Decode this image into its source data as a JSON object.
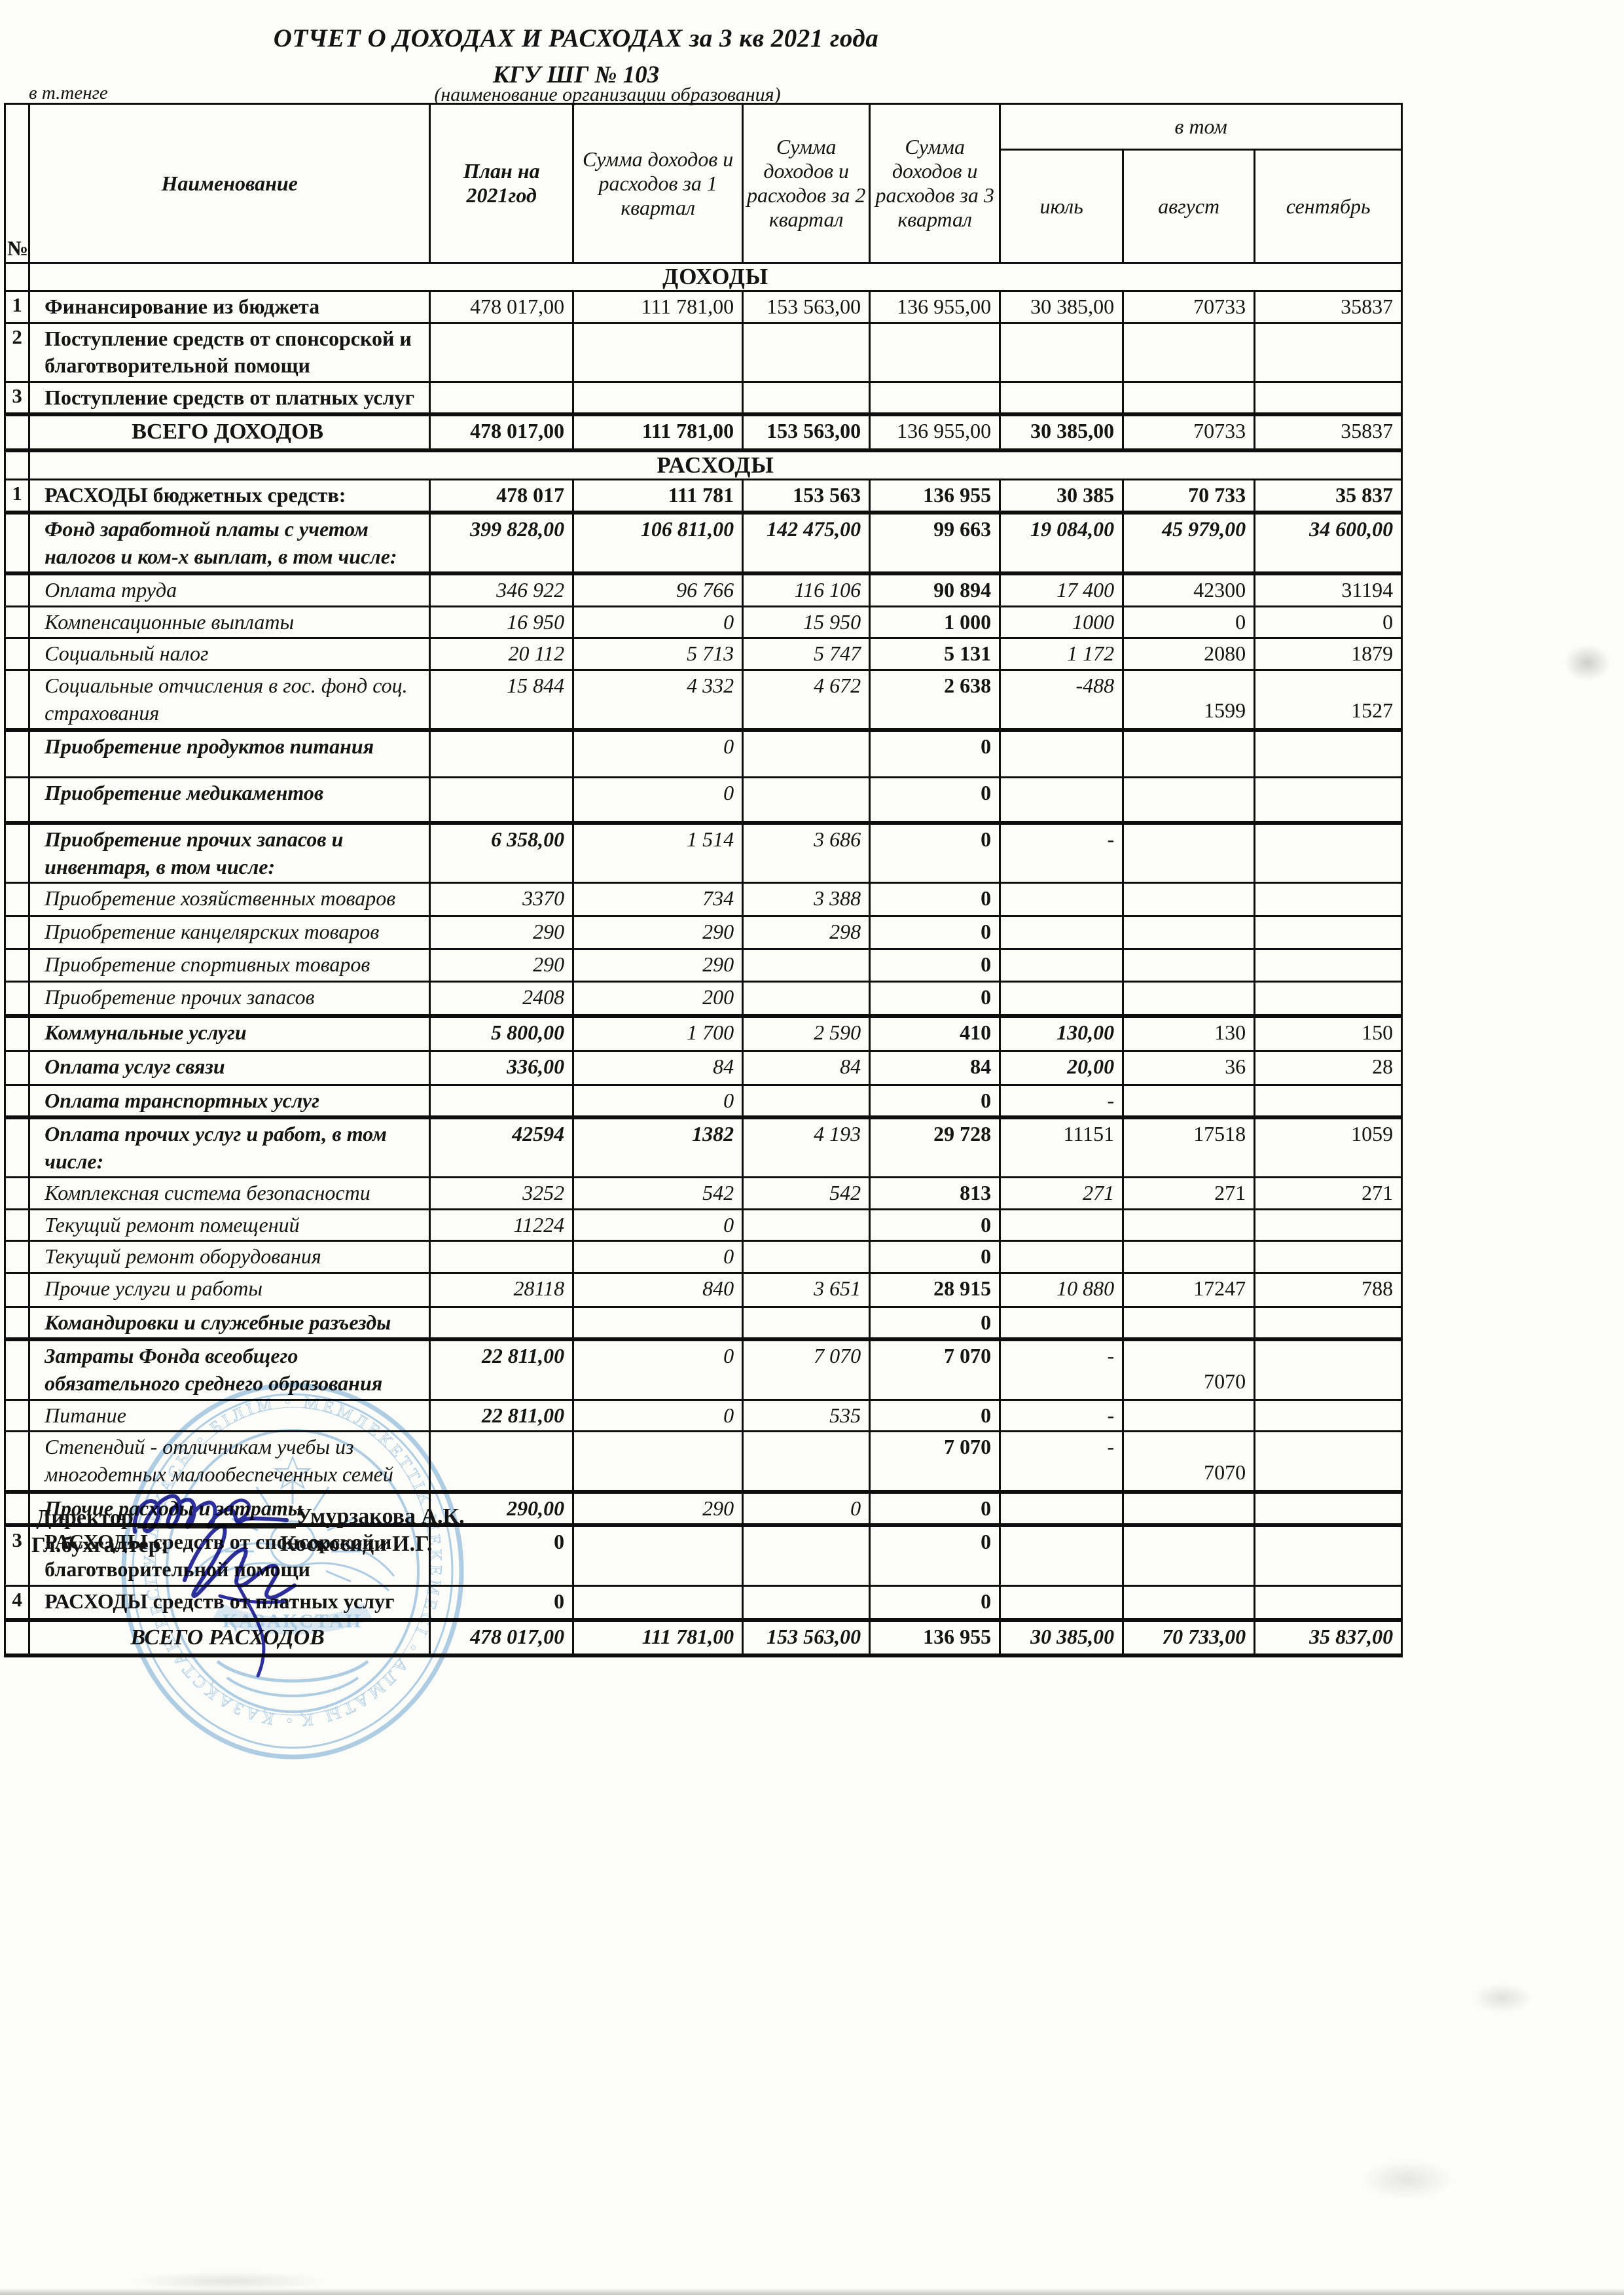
{
  "page": {
    "title_line1": "ОТЧЕТ О ДОХОДАХ И РАСХОДАХ за 3 кв   2021 года",
    "title_line2": "КГУ ШГ  №  103",
    "subtitle": "(наименование организации образования)",
    "currency_note": "в т.тенге"
  },
  "table": {
    "headers": {
      "num": "№",
      "name": "Наименование",
      "plan": "План на 2021год",
      "q1": "Сумма доходов и расходов за  1 квартал",
      "q2": "Сумма доходов и расходов за  2 квартал",
      "q3": "Сумма доходов и расходов за  3 квартал",
      "group": "в том",
      "months": [
        "июль",
        "август",
        "сентябрь"
      ]
    },
    "rows": [
      {
        "t": "section",
        "label": "ДОХОДЫ",
        "h": 35
      },
      {
        "t": "data",
        "num": "1",
        "name": "Финансирование из бюджета",
        "ns": "b",
        "h": 43,
        "v": [
          "478 017,00",
          "111 781,00",
          "153 563,00",
          "136 955,00",
          "30 385,00",
          "70733",
          "35837"
        ],
        "vs": [
          "",
          "",
          "",
          "",
          "",
          "",
          ""
        ]
      },
      {
        "t": "data",
        "num": "2",
        "name": "Поступление средств от спонсорской и благотворительной помощи",
        "ns": "b",
        "h": 87,
        "v": [
          "",
          "",
          "",
          "",
          "",
          "",
          ""
        ],
        "vs": [
          "",
          "",
          "",
          "",
          "",
          "",
          ""
        ]
      },
      {
        "t": "data",
        "num": "3",
        "name": "Поступление средств от платных услуг",
        "ns": "b",
        "h": 47,
        "hb": true,
        "v": [
          "",
          "",
          "",
          "",
          "",
          "",
          ""
        ],
        "vs": [
          "",
          "",
          "",
          "",
          "",
          "",
          ""
        ]
      },
      {
        "t": "total",
        "name": "ВСЕГО ДОХОДОВ",
        "ns": "b",
        "h": 46,
        "hb": true,
        "v": [
          "478 017,00",
          "111 781,00",
          "153 563,00",
          "136 955,00",
          "30 385,00",
          "70733",
          "35837"
        ],
        "vs": [
          "b",
          "b",
          "b",
          "",
          "b",
          "",
          ""
        ]
      },
      {
        "t": "section",
        "label": "РАСХОДЫ",
        "h": 34
      },
      {
        "t": "data",
        "num": "1",
        "name": "РАСХОДЫ бюджетных средств:",
        "ns": "b",
        "h": 51,
        "hb": true,
        "v": [
          "478 017",
          "111 781",
          "153 563",
          "136 955",
          "30 385",
          "70 733",
          "35 837"
        ],
        "vs": [
          "b",
          "b",
          "b",
          "b",
          "b",
          "b",
          "b"
        ]
      },
      {
        "t": "data",
        "num": "",
        "name": "Фонд заработной платы с учетом налогов и ком-х выплат, в том числе:",
        "ns": "bi",
        "h": 87,
        "hb": true,
        "v": [
          "399 828,00",
          "106 811,00",
          "142 475,00",
          "99 663",
          "19 084,00",
          "45 979,00",
          "34 600,00"
        ],
        "vs": [
          "bi",
          "bi",
          "bi",
          "b",
          "bi",
          "bi",
          "bi"
        ]
      },
      {
        "t": "data",
        "num": "",
        "name": "Оплата труда",
        "ns": "i",
        "h": 45,
        "v": [
          "346 922",
          "96 766",
          "116 106",
          "90 894",
          "17 400",
          "42300",
          "31194"
        ],
        "vs": [
          "i",
          "i",
          "i",
          "b",
          "i",
          "",
          ""
        ]
      },
      {
        "t": "data",
        "num": "",
        "name": "Компенсационные выплаты",
        "ns": "i",
        "h": 43,
        "v": [
          "16 950",
          "0",
          "15 950",
          "1 000",
          "1000",
          "0",
          "0"
        ],
        "vs": [
          "i",
          "i",
          "i",
          "b",
          "i",
          "",
          ""
        ]
      },
      {
        "t": "data",
        "num": "",
        "name": "Социальный налог",
        "ns": "i",
        "h": 44,
        "v": [
          "20 112",
          "5 713",
          "5 747",
          "5 131",
          "1 172",
          "2080",
          "1879"
        ],
        "vs": [
          "i",
          "i",
          "i",
          "b",
          "i",
          "",
          ""
        ]
      },
      {
        "t": "data",
        "num": "",
        "name": "Социальные отчисления в гос. фонд соц. страхования",
        "ns": "i",
        "h": 66,
        "hb": true,
        "v": [
          "15 844",
          "4 332",
          "4 672",
          "2 638",
          "-488",
          "1599",
          "1527"
        ],
        "vs": [
          "i",
          "i",
          "i",
          "b",
          "i",
          "d",
          "d"
        ]
      },
      {
        "t": "data",
        "num": "",
        "name": "Приобретение продуктов питания",
        "ns": "bi",
        "h": 72,
        "v": [
          "",
          "0",
          "",
          "0",
          "",
          "",
          ""
        ],
        "vs": [
          "",
          "i",
          "",
          "b",
          "",
          "",
          ""
        ]
      },
      {
        "t": "data",
        "num": "",
        "name": "Приобретение медикаментов",
        "ns": "bi",
        "h": 70,
        "hb": true,
        "v": [
          "",
          "0",
          "",
          "0",
          "",
          "",
          ""
        ],
        "vs": [
          "",
          "i",
          "",
          "b",
          "",
          "",
          ""
        ]
      },
      {
        "t": "data",
        "num": "",
        "name": "Приобретение прочих запасов и инвентаря, в том числе:",
        "ns": "bi",
        "h": 77,
        "v": [
          "6 358,00",
          "1 514",
          "3 686",
          "0",
          "-",
          "",
          ""
        ],
        "vs": [
          "bi",
          "i",
          "i",
          "b",
          "",
          "",
          ""
        ]
      },
      {
        "t": "data",
        "num": "",
        "name": "Приобретение хозяйственных товаров",
        "ns": "i",
        "h": 51,
        "v": [
          "3370",
          "734",
          "3 388",
          "0",
          "",
          "",
          ""
        ],
        "vs": [
          "i",
          "i",
          "i",
          "b",
          "",
          "",
          ""
        ]
      },
      {
        "t": "data",
        "num": "",
        "name": "Приобретение канцелярских товаров",
        "ns": "i",
        "h": 50,
        "v": [
          "290",
          "290",
          "298",
          "0",
          "",
          "",
          ""
        ],
        "vs": [
          "i",
          "i",
          "i",
          "b",
          "",
          "",
          ""
        ]
      },
      {
        "t": "data",
        "num": "",
        "name": "Приобретение спортивных товаров",
        "ns": "i",
        "h": 50,
        "v": [
          "290",
          "290",
          "",
          "0",
          "",
          "",
          ""
        ],
        "vs": [
          "i",
          "i",
          "",
          "b",
          "",
          "",
          ""
        ]
      },
      {
        "t": "data",
        "num": "",
        "name": "Приобретение прочих запасов",
        "ns": "i",
        "h": 52,
        "hb": true,
        "v": [
          "2408",
          "200",
          "",
          "0",
          "",
          "",
          ""
        ],
        "vs": [
          "i",
          "i",
          "",
          "b",
          "",
          "",
          ""
        ]
      },
      {
        "t": "data",
        "num": "",
        "name": "Коммунальные услуги",
        "ns": "bi",
        "h": 50,
        "v": [
          "5 800,00",
          "1 700",
          "2 590",
          "410",
          "130,00",
          "130",
          "150"
        ],
        "vs": [
          "bi",
          "i",
          "i",
          "b",
          "bi",
          "d",
          "d"
        ]
      },
      {
        "t": "data",
        "num": "",
        "name": "Оплата услуг связи",
        "ns": "bi",
        "h": 47,
        "v": [
          "336,00",
          "84",
          "84",
          "84",
          "20,00",
          "36",
          "28"
        ],
        "vs": [
          "bi",
          "i",
          "i",
          "b",
          "bi",
          "d",
          "d"
        ]
      },
      {
        "t": "data",
        "num": "",
        "name": "Оплата транспортных услуг",
        "ns": "bi",
        "h": 45,
        "hb": true,
        "v": [
          "",
          "0",
          "",
          "0",
          "-",
          "",
          ""
        ],
        "vs": [
          "",
          "i",
          "",
          "b",
          "",
          "",
          ""
        ]
      },
      {
        "t": "data",
        "num": "",
        "name": "Оплата прочих услуг и работ, в том числе:",
        "ns": "bi",
        "h": 40,
        "v": [
          "42594",
          "1382",
          "4 193",
          "29 728",
          "11151",
          "17518",
          "1059"
        ],
        "vs": [
          "bi",
          "bi",
          "i",
          "b",
          "",
          "",
          ""
        ]
      },
      {
        "t": "data",
        "num": "",
        "name": "Комплексная система безопасности",
        "ns": "i",
        "h": 45,
        "v": [
          "3252",
          "542",
          "542",
          "813",
          "271",
          "271",
          "271"
        ],
        "vs": [
          "i",
          "i",
          "i",
          "b",
          "i",
          "",
          ""
        ]
      },
      {
        "t": "data",
        "num": "",
        "name": "Текущий ремонт помещений",
        "ns": "i",
        "h": 46,
        "v": [
          "11224",
          "0",
          "",
          "0",
          "",
          "",
          ""
        ],
        "vs": [
          "i",
          "i",
          "",
          "b",
          "",
          "",
          ""
        ]
      },
      {
        "t": "data",
        "num": "",
        "name": "Текущий ремонт оборудования",
        "ns": "i",
        "h": 47,
        "v": [
          "",
          "0",
          "",
          "0",
          "",
          "",
          ""
        ],
        "vs": [
          "",
          "i",
          "",
          "b",
          "",
          "",
          ""
        ]
      },
      {
        "t": "data",
        "num": "",
        "name": "Прочие услуги и работы",
        "ns": "i",
        "h": 43,
        "v": [
          "28118",
          "840",
          "3 651",
          "28 915",
          "10 880",
          "17247",
          "788"
        ],
        "vs": [
          "i",
          "i",
          "i",
          "b",
          "i",
          "d",
          "d"
        ]
      },
      {
        "t": "data",
        "num": "",
        "name": "Командировки и служебные разъезды",
        "ns": "bi",
        "h": 47,
        "hb": true,
        "v": [
          "",
          "",
          "",
          "0",
          "",
          "",
          ""
        ],
        "vs": [
          "",
          "",
          "",
          "b",
          "",
          "",
          ""
        ]
      },
      {
        "t": "data",
        "num": "",
        "name": "Затраты Фонда всеобщего обязательного среднего образования",
        "ns": "bi",
        "h": 80,
        "v": [
          "22 811,00",
          "0",
          "7 070",
          "7 070",
          "-",
          "7070",
          ""
        ],
        "vs": [
          "bi",
          "i",
          "i",
          "b",
          "",
          "d",
          ""
        ]
      },
      {
        "t": "data",
        "num": "",
        "name": "Питание",
        "ns": "i",
        "h": 43,
        "v": [
          "22 811,00",
          "0",
          "535",
          "0",
          "-",
          "",
          ""
        ],
        "vs": [
          "bi",
          "i",
          "i",
          "b",
          "",
          "",
          ""
        ]
      },
      {
        "t": "data",
        "num": "",
        "name": "Степендий - отличникам учебы из многодетных  малообеспеченных семей",
        "ns": "i",
        "h": 92,
        "hb": true,
        "v": [
          "",
          "",
          "",
          "7 070",
          "-",
          "7070",
          ""
        ],
        "vs": [
          "",
          "",
          "",
          "b",
          "",
          "d",
          ""
        ]
      },
      {
        "t": "data",
        "num": "",
        "name": "Прочие расходы и затраты",
        "ns": "bi",
        "h": 40,
        "hb": true,
        "v": [
          "290,00",
          "290",
          "0",
          "0",
          "",
          "",
          ""
        ],
        "vs": [
          "bi",
          "i",
          "i",
          "b",
          "",
          "",
          ""
        ]
      },
      {
        "t": "data",
        "num": "3",
        "name": "РАСХОДЫ средств от спонсорской и благотворительной помощи",
        "ns": "b",
        "h": 90,
        "v": [
          "0",
          "",
          "",
          "0",
          "",
          "",
          ""
        ],
        "vs": [
          "b",
          "",
          "",
          "b",
          "",
          "",
          ""
        ]
      },
      {
        "t": "data",
        "num": "4",
        "name": "РАСХОДЫ  средств от платных услуг",
        "ns": "b",
        "h": 53,
        "hb": true,
        "v": [
          "0",
          "",
          "",
          "0",
          "",
          "",
          ""
        ],
        "vs": [
          "b",
          "",
          "",
          "b",
          "",
          "",
          ""
        ]
      },
      {
        "t": "total",
        "name": "ВСЕГО РАСХОДОВ",
        "ns": "bi",
        "h": 40,
        "hb": true,
        "v": [
          "478 017,00",
          "111 781,00",
          "153 563,00",
          "136 955",
          "30 385,00",
          "70 733,00",
          "35 837,00"
        ],
        "vs": [
          "bi",
          "bi",
          "bi",
          "b",
          "bi",
          "bi",
          "bi"
        ]
      }
    ]
  },
  "signatures": {
    "director_label": "Директор",
    "director_name": "Умурзакова А.К.",
    "accountant_label": "Гл.бухгалтер:",
    "accountant_name": "Коскосиди И.Г."
  },
  "stamp": {
    "center_text": "ҚАЗАҚСТАН",
    "ring_text": "• ҚАЗАҚСТАН РЕСПУБЛИКАСЫ • БІЛІМ • МЕМЛЕКЕТТІК МЕКЕМЕСІ • АЛМАТЫ ҚАЛАСЫ"
  },
  "colors": {
    "ink": "#141414",
    "signature": "#2d2f9f",
    "stamp": "#7fb3dc"
  }
}
